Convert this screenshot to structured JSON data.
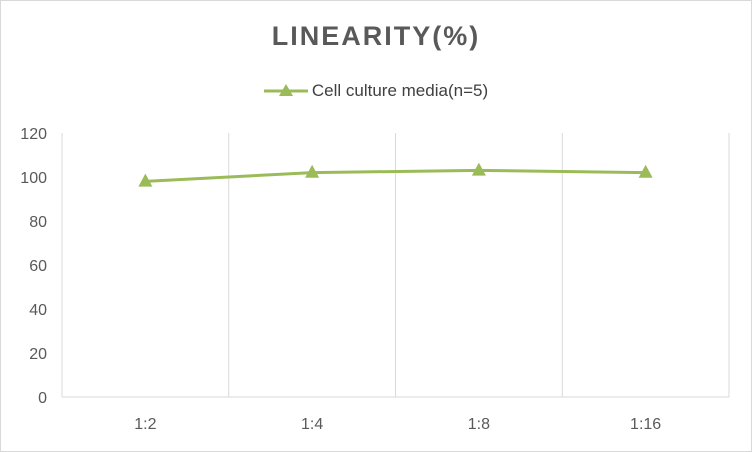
{
  "chart_data": {
    "type": "line",
    "title": "LINEARITY(%)",
    "categories": [
      "1:2",
      "1:4",
      "1:8",
      "1:16"
    ],
    "series": [
      {
        "name": "Cell culture media(n=5)",
        "values": [
          98,
          102,
          103,
          102
        ],
        "color": "#9bbb59",
        "marker": "triangle"
      }
    ],
    "xlabel": "",
    "ylabel": "",
    "ylim": [
      0,
      120
    ],
    "yticks": [
      0,
      20,
      40,
      60,
      80,
      100,
      120
    ],
    "grid": "vertical",
    "legend_position": "top"
  }
}
